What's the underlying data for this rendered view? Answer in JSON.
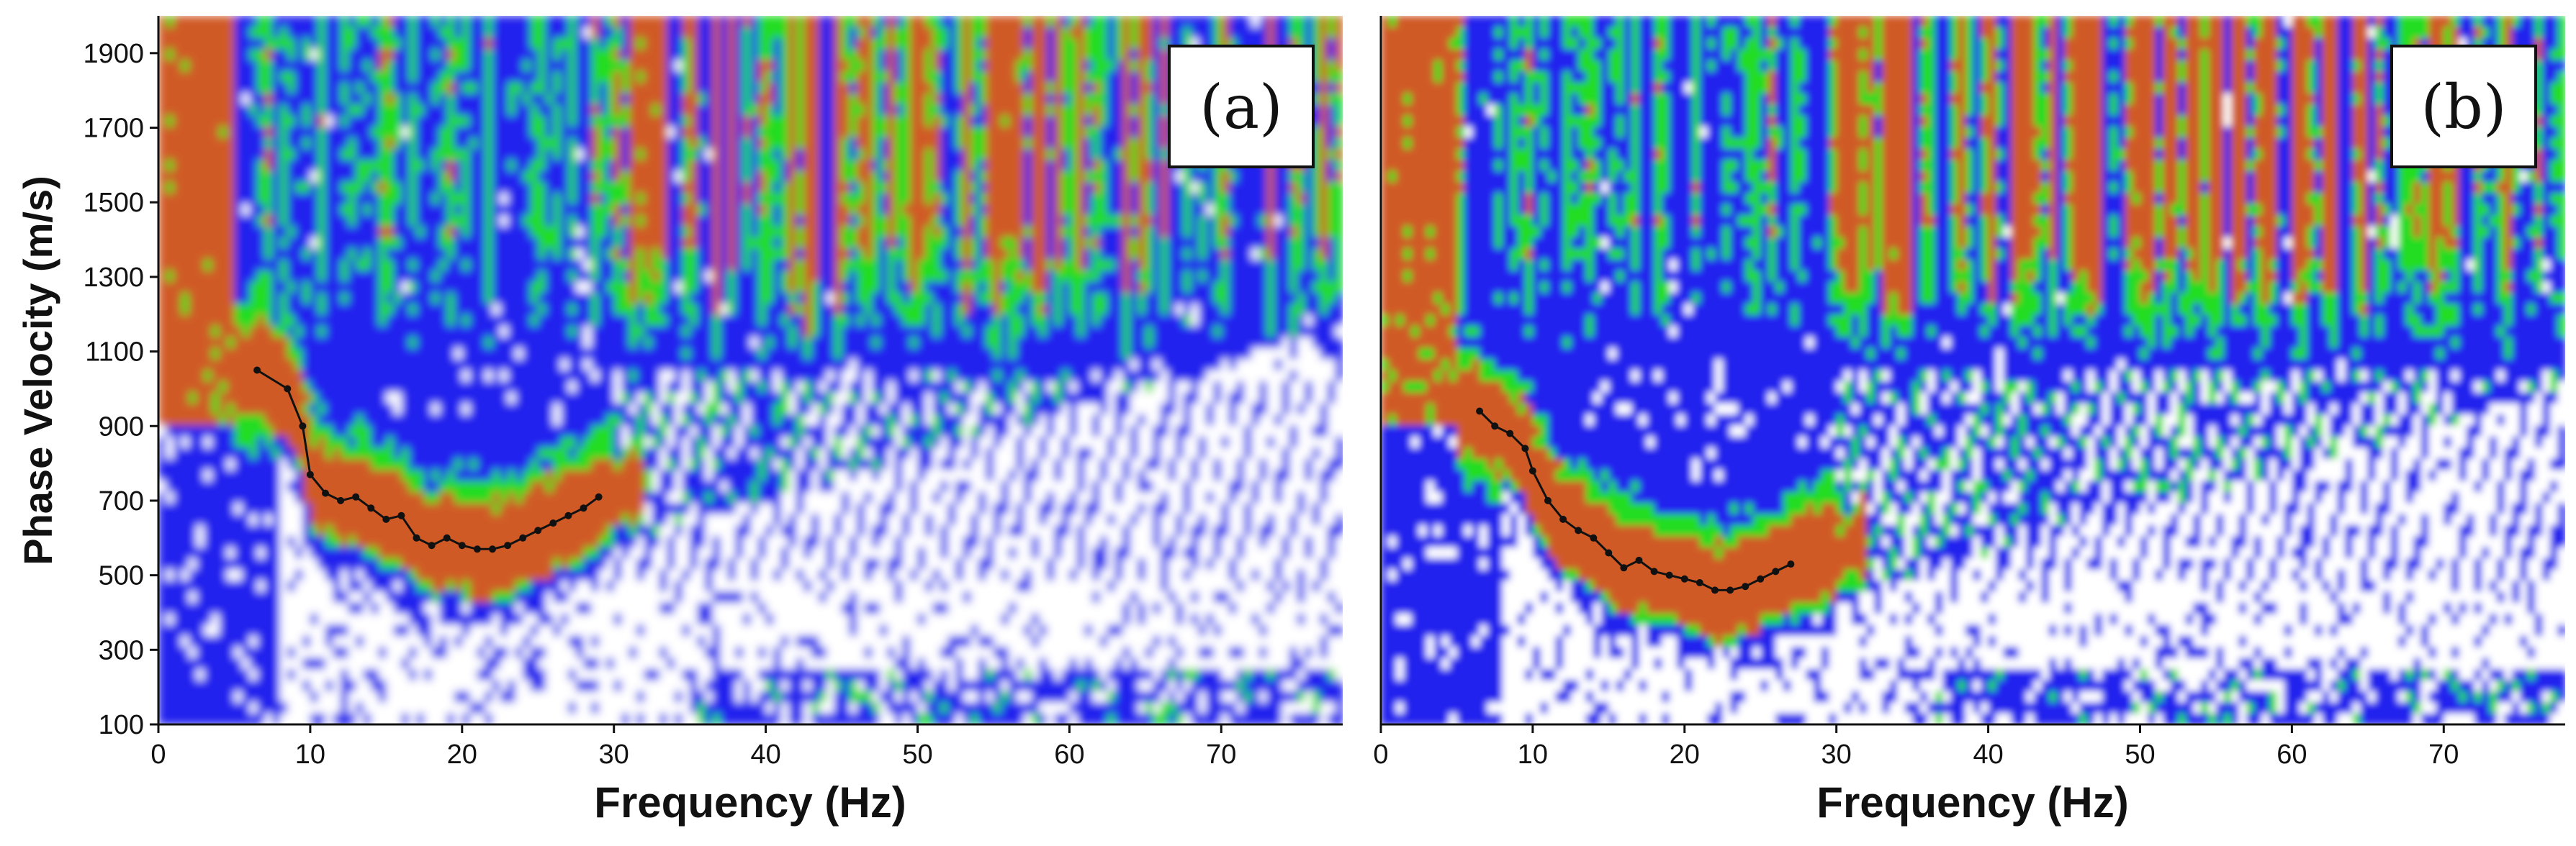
{
  "chart_data": [
    {
      "type": "heatmap",
      "panel_label": "(a)",
      "xlabel": "Frequency (Hz)",
      "ylabel": "Phase Velocity (m/s)",
      "xlim": [
        0,
        78
      ],
      "ylim": [
        100,
        2000
      ],
      "xticks": [
        0,
        10,
        20,
        30,
        40,
        50,
        60,
        70
      ],
      "yticks": [
        100,
        300,
        500,
        700,
        900,
        1100,
        1300,
        1500,
        1700,
        1900
      ],
      "colormap": [
        "#ffffff",
        "#2020ee",
        "#20dd20",
        "#d05a28"
      ],
      "picked_curve": {
        "x": [
          6.5,
          8.5,
          9.5,
          10,
          11,
          12,
          13,
          14,
          15,
          16,
          17,
          18,
          19,
          20,
          21,
          22,
          23,
          24,
          25,
          26,
          27,
          28,
          29
        ],
        "y": [
          1050,
          1000,
          900,
          770,
          720,
          700,
          710,
          680,
          650,
          660,
          600,
          580,
          600,
          580,
          570,
          570,
          580,
          600,
          620,
          640,
          660,
          680,
          710
        ]
      }
    },
    {
      "type": "heatmap",
      "panel_label": "(b)",
      "xlabel": "Frequency (Hz)",
      "ylabel": "",
      "xlim": [
        0,
        78
      ],
      "ylim": [
        100,
        2000
      ],
      "xticks": [
        0,
        10,
        20,
        30,
        40,
        50,
        60,
        70
      ],
      "yticks": [],
      "colormap": [
        "#ffffff",
        "#2020ee",
        "#20dd20",
        "#d05a28"
      ],
      "picked_curve": {
        "x": [
          6.5,
          7.5,
          8.5,
          9.5,
          10,
          11,
          12,
          13,
          14,
          15,
          16,
          17,
          18,
          19,
          20,
          21,
          22,
          23,
          24,
          25,
          26,
          27
        ],
        "y": [
          940,
          900,
          880,
          840,
          780,
          700,
          650,
          620,
          600,
          560,
          520,
          540,
          510,
          500,
          490,
          480,
          460,
          460,
          470,
          490,
          510,
          530
        ]
      }
    }
  ]
}
